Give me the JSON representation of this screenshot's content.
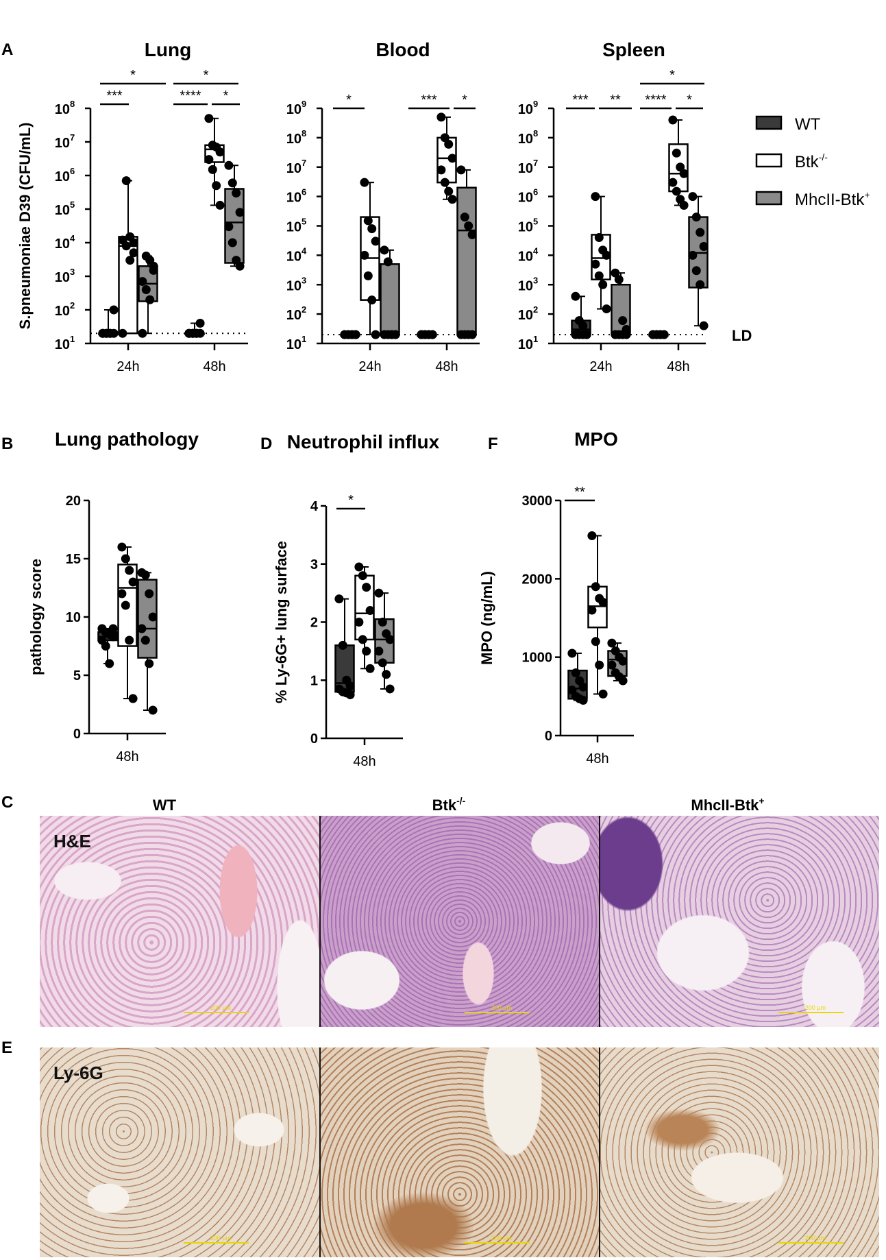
{
  "panel_letters": {
    "A": "A",
    "B": "B",
    "C": "C",
    "D": "D",
    "E": "E",
    "F": "F"
  },
  "legend": {
    "items": [
      {
        "label": "WT",
        "sup": "",
        "fill": "#3a3a3a"
      },
      {
        "label": "Btk",
        "sup": "-/-",
        "fill": "#ffffff"
      },
      {
        "label": "MhcII-Btk",
        "sup": "+",
        "fill": "#8a8a8a"
      }
    ]
  },
  "colors": {
    "wt": "#3a3a3a",
    "btk": "#ffffff",
    "mhc": "#8a8a8a",
    "he_bg": "#e9c6db",
    "ly_bg": "#e9dccd"
  },
  "ld_label": "LD",
  "chart_data": [
    {
      "type": "box",
      "title": "Lung",
      "ylabel": "S.pneumoniae D39 (CFU/mL)",
      "yscale": "log10",
      "ylim": [
        10,
        100000000
      ],
      "ytick_labels": [
        {
          "b": "10",
          "e": "1"
        },
        {
          "b": "10",
          "e": "2"
        },
        {
          "b": "10",
          "e": "3"
        },
        {
          "b": "10",
          "e": "4"
        },
        {
          "b": "10",
          "e": "5"
        },
        {
          "b": "10",
          "e": "6"
        },
        {
          "b": "10",
          "e": "7"
        },
        {
          "b": "10",
          "e": "8"
        }
      ],
      "categories": [
        "24h",
        "48h"
      ],
      "detection_limit": 20,
      "groups": [
        {
          "cat": "24h",
          "series": "WT",
          "q1": 20,
          "median": 20,
          "q3": 20,
          "min": 20,
          "max": 100,
          "points": [
            20,
            20,
            20,
            20,
            20,
            20,
            20,
            100
          ]
        },
        {
          "cat": "24h",
          "series": "Btk-/-",
          "q1": 20,
          "median": 8000,
          "q3": 15000,
          "min": 20,
          "max": 700000,
          "points": [
            20,
            700000,
            15000,
            10000,
            12000,
            8000,
            3000,
            5000
          ]
        },
        {
          "cat": "24h",
          "series": "MhcII-Btk+",
          "q1": 180,
          "median": 600,
          "q3": 2000,
          "min": 20,
          "max": 4000,
          "points": [
            20,
            4000,
            3000,
            1500,
            700,
            400,
            200,
            2000
          ]
        },
        {
          "cat": "48h",
          "series": "WT",
          "q1": 20,
          "median": 20,
          "q3": 20,
          "min": 20,
          "max": 40,
          "points": [
            20,
            20,
            20,
            20,
            20,
            20,
            20,
            40
          ]
        },
        {
          "cat": "48h",
          "series": "Btk-/-",
          "q1": 2500000,
          "median": 6000000,
          "q3": 8000000,
          "min": 130000,
          "max": 50000000,
          "points": [
            50000000,
            8000000,
            7000000,
            5000000,
            3000000,
            1500000,
            500000,
            130000
          ]
        },
        {
          "cat": "48h",
          "series": "MhcII-Btk+",
          "q1": 2500,
          "median": 40000,
          "q3": 400000,
          "min": 2000,
          "max": 2000000,
          "points": [
            2000000,
            600000,
            300000,
            80000,
            30000,
            10000,
            3000,
            2000
          ]
        }
      ],
      "annotations": [
        "***",
        "****",
        "*",
        "*",
        "*"
      ]
    },
    {
      "type": "box",
      "title": "Blood",
      "yscale": "log10",
      "ylim": [
        10,
        1000000000
      ],
      "ytick_labels": [
        {
          "b": "10",
          "e": "1"
        },
        {
          "b": "10",
          "e": "2"
        },
        {
          "b": "10",
          "e": "3"
        },
        {
          "b": "10",
          "e": "4"
        },
        {
          "b": "10",
          "e": "5"
        },
        {
          "b": "10",
          "e": "6"
        },
        {
          "b": "10",
          "e": "7"
        },
        {
          "b": "10",
          "e": "8"
        },
        {
          "b": "10",
          "e": "9"
        }
      ],
      "categories": [
        "24h",
        "48h"
      ],
      "detection_limit": 20,
      "groups": [
        {
          "cat": "24h",
          "series": "WT",
          "q1": 20,
          "median": 20,
          "q3": 20,
          "min": 20,
          "max": 20,
          "points": [
            20,
            20,
            20,
            20,
            20,
            20,
            20,
            20
          ]
        },
        {
          "cat": "24h",
          "series": "Btk-/-",
          "q1": 300,
          "median": 8000,
          "q3": 200000,
          "min": 20,
          "max": 3000000,
          "points": [
            3000000,
            150000,
            80000,
            30000,
            10000,
            2000,
            300,
            20
          ]
        },
        {
          "cat": "24h",
          "series": "MhcII-Btk+",
          "q1": 20,
          "median": 20,
          "q3": 5000,
          "min": 20,
          "max": 15000,
          "points": [
            15000,
            6000,
            20,
            20,
            20,
            20,
            20,
            20
          ]
        },
        {
          "cat": "48h",
          "series": "WT",
          "q1": 20,
          "median": 20,
          "q3": 20,
          "min": 20,
          "max": 20,
          "points": [
            20,
            20,
            20,
            20,
            20,
            20,
            20,
            20
          ]
        },
        {
          "cat": "48h",
          "series": "Btk-/-",
          "q1": 3000000,
          "median": 20000000,
          "q3": 100000000,
          "min": 800000,
          "max": 500000000,
          "points": [
            500000000,
            100000000,
            60000000,
            20000000,
            8000000,
            3000000,
            1500000,
            800000
          ]
        },
        {
          "cat": "48h",
          "series": "MhcII-Btk+",
          "q1": 20,
          "median": 70000,
          "q3": 2000000,
          "min": 20,
          "max": 8000000,
          "points": [
            8000000,
            200000,
            100000,
            50000,
            20,
            20,
            20,
            20
          ]
        }
      ],
      "annotations": [
        "*",
        "***",
        "*"
      ]
    },
    {
      "type": "box",
      "title": "Spleen",
      "yscale": "log10",
      "ylim": [
        10,
        1000000000
      ],
      "ytick_labels": [
        {
          "b": "10",
          "e": "1"
        },
        {
          "b": "10",
          "e": "2"
        },
        {
          "b": "10",
          "e": "3"
        },
        {
          "b": "10",
          "e": "4"
        },
        {
          "b": "10",
          "e": "5"
        },
        {
          "b": "10",
          "e": "6"
        },
        {
          "b": "10",
          "e": "7"
        },
        {
          "b": "10",
          "e": "8"
        },
        {
          "b": "10",
          "e": "9"
        }
      ],
      "categories": [
        "24h",
        "48h"
      ],
      "detection_limit": 20,
      "groups": [
        {
          "cat": "24h",
          "series": "WT",
          "q1": 20,
          "median": 30,
          "q3": 60,
          "min": 20,
          "max": 400,
          "points": [
            400,
            60,
            40,
            20,
            20,
            20,
            20,
            20
          ]
        },
        {
          "cat": "24h",
          "series": "Btk-/-",
          "q1": 1500,
          "median": 8000,
          "q3": 50000,
          "min": 150,
          "max": 1000000,
          "points": [
            1000000,
            40000,
            15000,
            10000,
            5000,
            2000,
            1000,
            150
          ]
        },
        {
          "cat": "24h",
          "series": "MhcII-Btk+",
          "q1": 20,
          "median": 20,
          "q3": 1000,
          "min": 20,
          "max": 2500,
          "points": [
            2500,
            1500,
            60,
            30,
            20,
            20,
            20,
            20
          ]
        },
        {
          "cat": "48h",
          "series": "WT",
          "q1": 20,
          "median": 20,
          "q3": 20,
          "min": 20,
          "max": 20,
          "points": [
            20,
            20,
            20,
            20,
            20,
            20,
            20,
            20
          ]
        },
        {
          "cat": "48h",
          "series": "Btk-/-",
          "q1": 1500000,
          "median": 6000000,
          "q3": 60000000,
          "min": 500000,
          "max": 400000000,
          "points": [
            400000000,
            30000000,
            10000000,
            6000000,
            3000000,
            1500000,
            800000,
            500000
          ]
        },
        {
          "cat": "48h",
          "series": "MhcII-Btk+",
          "q1": 800,
          "median": 12000,
          "q3": 200000,
          "min": 40,
          "max": 1000000,
          "points": [
            1000000,
            200000,
            60000,
            20000,
            10000,
            3000,
            1000,
            40
          ]
        }
      ],
      "annotations": [
        "***",
        "**",
        "****",
        "*",
        "*"
      ]
    },
    {
      "type": "box",
      "title": "Lung pathology",
      "ylabel": "pathology score",
      "ylim": [
        0,
        20
      ],
      "yticks": [
        0,
        5,
        10,
        15,
        20
      ],
      "categories": [
        "48h"
      ],
      "groups": [
        {
          "series": "WT",
          "q1": 8,
          "median": 8.3,
          "q3": 8.7,
          "min": 6,
          "max": 9,
          "points": [
            9,
            8.7,
            8.5,
            8.3,
            8,
            7.5,
            6,
            9
          ]
        },
        {
          "series": "Btk-/-",
          "q1": 7.5,
          "median": 12.5,
          "q3": 14.5,
          "min": 3,
          "max": 16,
          "points": [
            16,
            15,
            14,
            13,
            12,
            11,
            8,
            3
          ]
        },
        {
          "series": "MhcII-Btk+",
          "q1": 6.5,
          "median": 9,
          "q3": 13.2,
          "min": 2,
          "max": 13.8,
          "points": [
            13.8,
            13.6,
            12,
            10,
            9,
            8,
            6,
            2
          ]
        }
      ]
    },
    {
      "type": "box",
      "title": "Neutrophil influx",
      "ylabel": "% Ly-6G+ lung surface",
      "ylim": [
        0,
        4
      ],
      "yticks": [
        0,
        1,
        2,
        3,
        4
      ],
      "categories": [
        "48h"
      ],
      "groups": [
        {
          "series": "WT",
          "q1": 0.8,
          "median": 0.95,
          "q3": 1.6,
          "min": 0.75,
          "max": 2.4,
          "points": [
            2.4,
            1.6,
            1.0,
            0.9,
            0.85,
            0.8,
            0.78,
            0.75
          ]
        },
        {
          "series": "Btk-/-",
          "q1": 1.7,
          "median": 2.15,
          "q3": 2.8,
          "min": 1.2,
          "max": 2.95,
          "points": [
            2.95,
            2.8,
            2.6,
            2.2,
            2.0,
            1.7,
            1.5,
            1.2
          ]
        },
        {
          "series": "MhcII-Btk+",
          "q1": 1.3,
          "median": 1.7,
          "q3": 2.05,
          "min": 0.85,
          "max": 2.5,
          "points": [
            2.5,
            2.0,
            1.8,
            1.7,
            1.5,
            1.3,
            1.1,
            0.85
          ]
        }
      ],
      "annotations": [
        "*"
      ]
    },
    {
      "type": "box",
      "title": "MPO",
      "ylabel": "MPO (ng/mL)",
      "ylim": [
        0,
        3000
      ],
      "yticks": [
        0,
        1000,
        2000,
        3000
      ],
      "categories": [
        "48h"
      ],
      "groups": [
        {
          "series": "WT",
          "q1": 470,
          "median": 600,
          "q3": 830,
          "min": 450,
          "max": 1050,
          "points": [
            1050,
            800,
            700,
            620,
            580,
            500,
            470,
            450
          ]
        },
        {
          "series": "Btk-/-",
          "q1": 1380,
          "median": 1650,
          "q3": 1900,
          "min": 530,
          "max": 2550,
          "points": [
            2550,
            1900,
            1750,
            1700,
            1600,
            1200,
            900,
            530
          ]
        },
        {
          "series": "MhcII-Btk+",
          "q1": 760,
          "median": 970,
          "q3": 1080,
          "min": 700,
          "max": 1180,
          "points": [
            1180,
            1080,
            1000,
            950,
            900,
            800,
            750,
            700
          ]
        }
      ],
      "annotations": [
        "**"
      ]
    }
  ],
  "micrographs": {
    "columns": [
      "WT",
      "Btk",
      "MhcII-Btk"
    ],
    "column_sups": [
      "",
      "-/-",
      "+"
    ],
    "rows": [
      "H&E",
      "Ly-6G"
    ],
    "scalebar": "200 µm"
  }
}
